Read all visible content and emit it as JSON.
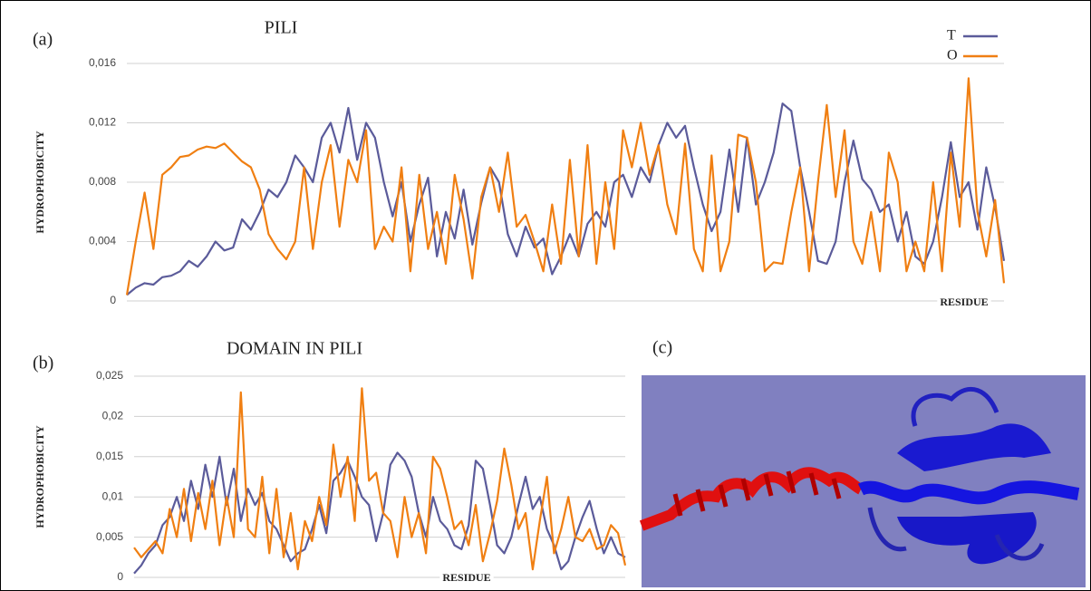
{
  "chart_data": [
    {
      "type": "line",
      "panel_label": "(a)",
      "title": "PILI",
      "ylabel": "HYDROPHOBICITY",
      "xlabel": "RESIDUE",
      "ylim": [
        0,
        0.016
      ],
      "yticks": [
        0,
        {
          "value": 0.004,
          "label": "0,004"
        },
        {
          "value": 0.008,
          "label": "0,008"
        },
        {
          "value": 0.012,
          "label": "0,012"
        },
        {
          "value": 0.016,
          "label": "0,016"
        }
      ],
      "grid": true,
      "legend": "upper right",
      "series": [
        {
          "name": "T",
          "color": "#5b5b9a",
          "values": [
            0.0004,
            0.0009,
            0.0012,
            0.0011,
            0.0016,
            0.0017,
            0.002,
            0.0027,
            0.0023,
            0.003,
            0.004,
            0.0034,
            0.0036,
            0.0055,
            0.0048,
            0.006,
            0.0075,
            0.007,
            0.008,
            0.0098,
            0.009,
            0.008,
            0.011,
            0.012,
            0.01,
            0.013,
            0.0095,
            0.012,
            0.011,
            0.008,
            0.0057,
            0.008,
            0.004,
            0.0065,
            0.0083,
            0.003,
            0.006,
            0.0042,
            0.0075,
            0.0038,
            0.0066,
            0.009,
            0.008,
            0.0045,
            0.003,
            0.005,
            0.0036,
            0.0042,
            0.0018,
            0.003,
            0.0045,
            0.003,
            0.0052,
            0.006,
            0.005,
            0.008,
            0.0085,
            0.007,
            0.009,
            0.008,
            0.0105,
            0.012,
            0.011,
            0.0118,
            0.009,
            0.0065,
            0.0047,
            0.006,
            0.0102,
            0.006,
            0.011,
            0.0065,
            0.008,
            0.01,
            0.0133,
            0.0128,
            0.009,
            0.006,
            0.0027,
            0.0025,
            0.004,
            0.008,
            0.0108,
            0.0082,
            0.0075,
            0.006,
            0.0065,
            0.004,
            0.006,
            0.003,
            0.0025,
            0.004,
            0.007,
            0.0107,
            0.007,
            0.008,
            0.0048,
            0.009,
            0.0063,
            0.0027
          ]
        },
        {
          "name": "O",
          "color": "#f07f12",
          "values": [
            0.0004,
            0.004,
            0.0073,
            0.0035,
            0.0085,
            0.009,
            0.0097,
            0.0098,
            0.0102,
            0.0104,
            0.0103,
            0.0106,
            0.01,
            0.0094,
            0.009,
            0.0075,
            0.0045,
            0.0035,
            0.0028,
            0.004,
            0.009,
            0.0035,
            0.008,
            0.0105,
            0.005,
            0.0095,
            0.008,
            0.0115,
            0.0035,
            0.005,
            0.004,
            0.009,
            0.002,
            0.0085,
            0.0035,
            0.006,
            0.0025,
            0.0085,
            0.0055,
            0.0015,
            0.007,
            0.009,
            0.006,
            0.01,
            0.005,
            0.0058,
            0.004,
            0.002,
            0.0065,
            0.0025,
            0.0095,
            0.003,
            0.0105,
            0.0025,
            0.008,
            0.0035,
            0.0115,
            0.009,
            0.012,
            0.0085,
            0.0105,
            0.0065,
            0.0045,
            0.0106,
            0.0035,
            0.002,
            0.0098,
            0.002,
            0.004,
            0.0112,
            0.011,
            0.008,
            0.002,
            0.0026,
            0.0025,
            0.006,
            0.009,
            0.002,
            0.008,
            0.0132,
            0.007,
            0.0115,
            0.004,
            0.0025,
            0.006,
            0.002,
            0.01,
            0.008,
            0.002,
            0.004,
            0.002,
            0.008,
            0.002,
            0.01,
            0.005,
            0.015,
            0.006,
            0.003,
            0.0068,
            0.0012
          ]
        }
      ]
    },
    {
      "type": "line",
      "panel_label": "(b)",
      "title": "DOMAIN IN PILI",
      "ylabel": "HYDROPHOBICITY",
      "xlabel": "RESIDUE",
      "ylim": [
        0,
        0.025
      ],
      "yticks": [
        0,
        {
          "value": 0.005,
          "label": "0,005"
        },
        {
          "value": 0.01,
          "label": "0,01"
        },
        {
          "value": 0.015,
          "label": "0,015"
        },
        {
          "value": 0.02,
          "label": "0,02"
        },
        {
          "value": 0.025,
          "label": "0,025"
        }
      ],
      "grid": true,
      "series": [
        {
          "color": "#5b5b9a",
          "values": [
            0.0005,
            0.0015,
            0.003,
            0.004,
            0.0065,
            0.0075,
            0.01,
            0.007,
            0.012,
            0.0085,
            0.014,
            0.01,
            0.015,
            0.009,
            0.0135,
            0.007,
            0.011,
            0.009,
            0.0105,
            0.007,
            0.006,
            0.004,
            0.002,
            0.003,
            0.0035,
            0.006,
            0.009,
            0.0055,
            0.012,
            0.013,
            0.0145,
            0.0125,
            0.01,
            0.009,
            0.0045,
            0.008,
            0.014,
            0.0155,
            0.0145,
            0.0125,
            0.008,
            0.005,
            0.01,
            0.007,
            0.006,
            0.004,
            0.0035,
            0.0065,
            0.0145,
            0.0135,
            0.009,
            0.004,
            0.003,
            0.005,
            0.009,
            0.0125,
            0.0085,
            0.01,
            0.006,
            0.004,
            0.001,
            0.002,
            0.005,
            0.0075,
            0.0095,
            0.006,
            0.003,
            0.005,
            0.003,
            0.0025
          ]
        },
        {
          "color": "#f07f12",
          "values": [
            0.0037,
            0.0025,
            0.0035,
            0.0045,
            0.003,
            0.0085,
            0.005,
            0.011,
            0.0045,
            0.0105,
            0.006,
            0.012,
            0.004,
            0.01,
            0.005,
            0.023,
            0.006,
            0.005,
            0.0125,
            0.003,
            0.011,
            0.0025,
            0.008,
            0.001,
            0.007,
            0.0045,
            0.01,
            0.0065,
            0.0165,
            0.01,
            0.015,
            0.007,
            0.0235,
            0.012,
            0.013,
            0.008,
            0.007,
            0.0025,
            0.01,
            0.005,
            0.008,
            0.003,
            0.015,
            0.0135,
            0.01,
            0.006,
            0.007,
            0.004,
            0.009,
            0.002,
            0.0055,
            0.0095,
            0.016,
            0.0115,
            0.006,
            0.008,
            0.001,
            0.007,
            0.0125,
            0.003,
            0.006,
            0.01,
            0.005,
            0.0045,
            0.006,
            0.0035,
            0.004,
            0.0065,
            0.0055,
            0.0015
          ]
        }
      ]
    }
  ],
  "panel_c": {
    "label": "(c)"
  }
}
